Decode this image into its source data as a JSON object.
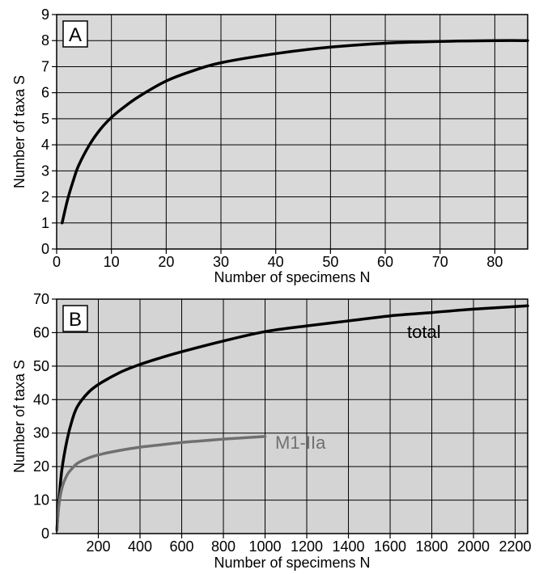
{
  "chart_data": [
    {
      "type": "line",
      "panel_label": "A",
      "xlabel": "Number of specimens N",
      "ylabel": "Number of taxa S",
      "xlim": [
        0,
        86
      ],
      "ylim": [
        0,
        9
      ],
      "xticks": [
        0,
        10,
        20,
        30,
        40,
        50,
        60,
        70,
        80
      ],
      "yticks": [
        0,
        1,
        2,
        3,
        4,
        5,
        6,
        7,
        8,
        9
      ],
      "grid": true,
      "background": "#d9d9d9",
      "series": [
        {
          "color": "#000000",
          "x": [
            1,
            2,
            3,
            4,
            6,
            8,
            10,
            12,
            15,
            20,
            25,
            30,
            40,
            50,
            60,
            70,
            80,
            86
          ],
          "y": [
            1.0,
            1.9,
            2.6,
            3.2,
            4.0,
            4.6,
            5.05,
            5.4,
            5.85,
            6.45,
            6.85,
            7.15,
            7.5,
            7.75,
            7.9,
            7.97,
            8.0,
            8.0
          ]
        }
      ]
    },
    {
      "type": "line",
      "panel_label": "B",
      "xlabel": "Number of specimens N",
      "ylabel": "Number of taxa S",
      "xlim": [
        0,
        2260
      ],
      "ylim": [
        0,
        70
      ],
      "xticks": [
        200,
        400,
        600,
        800,
        1000,
        1200,
        1400,
        1600,
        1800,
        2000,
        2200
      ],
      "yticks": [
        0,
        10,
        20,
        30,
        40,
        50,
        60,
        70
      ],
      "grid": true,
      "background": "#d4d4d4",
      "series": [
        {
          "name": "total",
          "color": "#000000",
          "x": [
            1,
            10,
            25,
            50,
            75,
            100,
            150,
            200,
            300,
            400,
            500,
            600,
            800,
            1000,
            1200,
            1400,
            1600,
            1800,
            2000,
            2260
          ],
          "y": [
            1,
            9,
            19,
            28,
            34,
            38,
            42,
            44.5,
            48,
            50.5,
            52.5,
            54.3,
            57.5,
            60.3,
            62,
            63.5,
            65,
            66,
            67,
            68
          ]
        },
        {
          "name": "M1-IIa",
          "color": "#707070",
          "x": [
            1,
            10,
            25,
            50,
            75,
            100,
            150,
            200,
            300,
            400,
            500,
            600,
            700,
            800,
            900,
            1000
          ],
          "y": [
            1,
            8,
            13.5,
            17.5,
            19.5,
            21,
            22.5,
            23.5,
            24.8,
            25.8,
            26.5,
            27.2,
            27.7,
            28.2,
            28.6,
            29
          ]
        }
      ]
    }
  ]
}
